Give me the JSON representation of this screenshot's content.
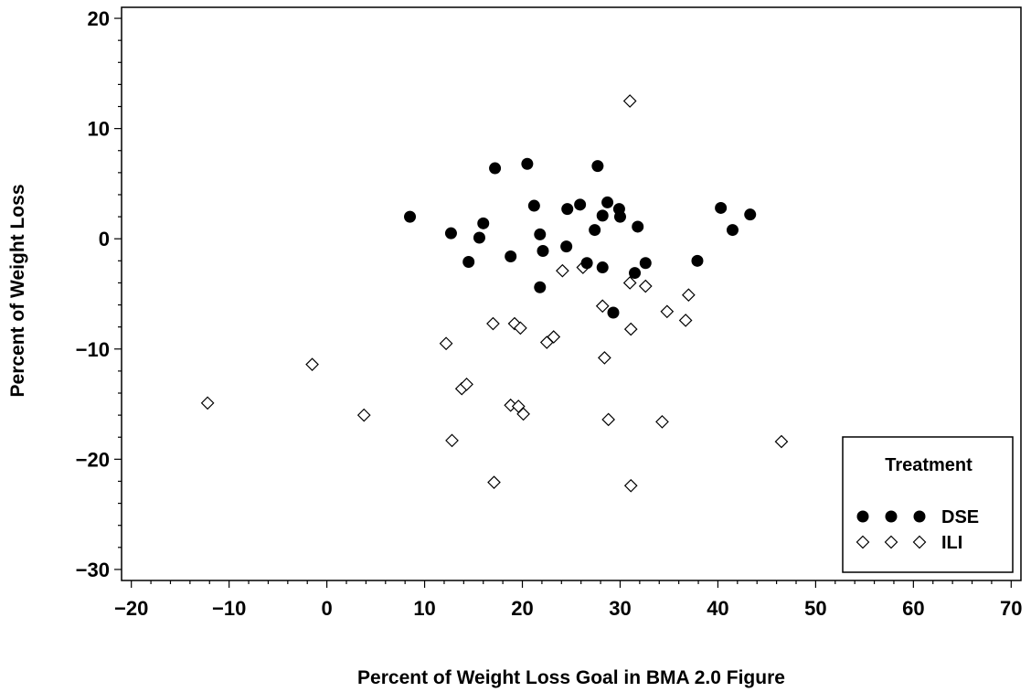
{
  "chart_data": {
    "type": "scatter",
    "title": "",
    "xlabel": "Percent of Weight Loss Goal in BMA 2.0 Figure",
    "ylabel": "Percent of Weight Loss",
    "xlim": [
      -21,
      71
    ],
    "ylim": [
      -31,
      21
    ],
    "x_ticks": [
      -20,
      -10,
      0,
      10,
      20,
      30,
      40,
      50,
      60,
      70
    ],
    "y_ticks": [
      -30,
      -20,
      -10,
      0,
      10,
      20
    ],
    "x_tick_labels": [
      "−20",
      "−10",
      "0",
      "10",
      "20",
      "30",
      "40",
      "50",
      "60",
      "70"
    ],
    "y_tick_labels": [
      "−30",
      "−20",
      "−10",
      "0",
      "10",
      "20"
    ],
    "grid": false,
    "legend": {
      "title": "Treatment",
      "placement": "bottom-right",
      "entries": [
        "DSE",
        "ILI"
      ]
    },
    "series": [
      {
        "name": "DSE",
        "marker": "filled-circle",
        "color": "#000000",
        "points": [
          [
            8.5,
            2.0
          ],
          [
            12.7,
            0.5
          ],
          [
            14.5,
            -2.1
          ],
          [
            15.6,
            0.1
          ],
          [
            16.0,
            1.4
          ],
          [
            17.2,
            6.4
          ],
          [
            18.8,
            -1.6
          ],
          [
            20.5,
            6.8
          ],
          [
            21.2,
            3.0
          ],
          [
            21.8,
            0.4
          ],
          [
            21.8,
            -4.4
          ],
          [
            22.1,
            -1.1
          ],
          [
            24.5,
            -0.7
          ],
          [
            24.6,
            2.7
          ],
          [
            25.9,
            3.1
          ],
          [
            26.6,
            -2.2
          ],
          [
            27.4,
            0.8
          ],
          [
            27.7,
            6.6
          ],
          [
            28.2,
            2.1
          ],
          [
            28.2,
            -2.6
          ],
          [
            28.7,
            3.3
          ],
          [
            29.3,
            -6.7
          ],
          [
            29.9,
            2.7
          ],
          [
            30.0,
            2.0
          ],
          [
            31.5,
            -3.1
          ],
          [
            31.8,
            1.1
          ],
          [
            32.6,
            -2.2
          ],
          [
            37.9,
            -2.0
          ],
          [
            40.3,
            2.8
          ],
          [
            41.5,
            0.8
          ],
          [
            43.3,
            2.2
          ]
        ]
      },
      {
        "name": "ILI",
        "marker": "open-diamond",
        "color": "#000000",
        "points": [
          [
            -12.2,
            -14.9
          ],
          [
            -1.5,
            -11.4
          ],
          [
            3.8,
            -16.0
          ],
          [
            12.2,
            -9.5
          ],
          [
            12.8,
            -18.3
          ],
          [
            13.8,
            -13.6
          ],
          [
            14.3,
            -13.2
          ],
          [
            17.0,
            -7.7
          ],
          [
            17.1,
            -22.1
          ],
          [
            18.8,
            -15.1
          ],
          [
            19.2,
            -7.7
          ],
          [
            19.6,
            -15.2
          ],
          [
            19.8,
            -8.1
          ],
          [
            20.1,
            -15.9
          ],
          [
            22.5,
            -9.4
          ],
          [
            23.2,
            -8.9
          ],
          [
            24.1,
            -2.9
          ],
          [
            26.2,
            -2.6
          ],
          [
            28.2,
            -6.1
          ],
          [
            28.4,
            -10.8
          ],
          [
            28.8,
            -16.4
          ],
          [
            31.0,
            12.5
          ],
          [
            31.0,
            -4.0
          ],
          [
            31.1,
            -8.2
          ],
          [
            31.1,
            -22.4
          ],
          [
            32.6,
            -4.3
          ],
          [
            34.3,
            -16.6
          ],
          [
            34.8,
            -6.6
          ],
          [
            36.7,
            -7.4
          ],
          [
            37.0,
            -5.1
          ],
          [
            46.5,
            -18.4
          ]
        ]
      }
    ]
  }
}
